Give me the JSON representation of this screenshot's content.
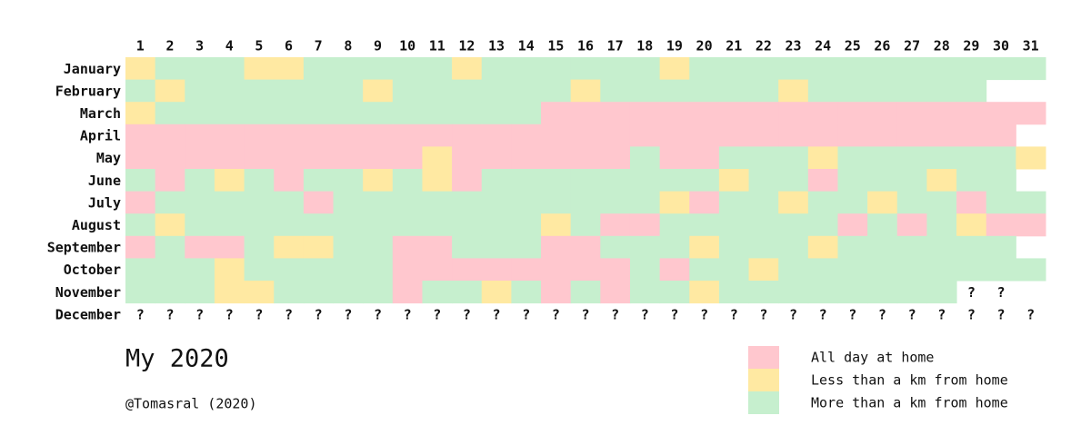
{
  "chart_data": {
    "type": "calendar-grid",
    "title": "My 2020",
    "credit": "@Tomasral (2020)",
    "days": [
      1,
      2,
      3,
      4,
      5,
      6,
      7,
      8,
      9,
      10,
      11,
      12,
      13,
      14,
      15,
      16,
      17,
      18,
      19,
      20,
      21,
      22,
      23,
      24,
      25,
      26,
      27,
      28,
      29,
      30,
      31
    ],
    "months": [
      "January",
      "February",
      "March",
      "April",
      "May",
      "June",
      "July",
      "August",
      "September",
      "October",
      "November",
      "December"
    ],
    "legend": [
      {
        "label": "All day at home",
        "color": "#ffc7ce"
      },
      {
        "label": "Less than a km from home",
        "color": "#ffe9a2"
      },
      {
        "label": "More than a km from home",
        "color": "#c6efce"
      }
    ],
    "cells": [
      [
        1,
        2,
        2,
        2,
        1,
        1,
        2,
        2,
        2,
        2,
        2,
        1,
        2,
        2,
        2,
        2,
        2,
        2,
        1,
        2,
        2,
        2,
        2,
        2,
        2,
        2,
        2,
        2,
        2,
        2,
        2
      ],
      [
        2,
        1,
        2,
        2,
        2,
        2,
        2,
        2,
        1,
        2,
        2,
        2,
        2,
        2,
        2,
        1,
        2,
        2,
        2,
        2,
        2,
        2,
        1,
        2,
        2,
        2,
        2,
        2,
        2,
        null,
        null
      ],
      [
        1,
        2,
        2,
        2,
        2,
        2,
        2,
        2,
        2,
        2,
        2,
        2,
        2,
        2,
        0,
        0,
        0,
        0,
        0,
        0,
        0,
        0,
        0,
        0,
        0,
        0,
        0,
        0,
        0,
        0,
        0
      ],
      [
        0,
        0,
        0,
        0,
        0,
        0,
        0,
        0,
        0,
        0,
        0,
        0,
        0,
        0,
        0,
        0,
        0,
        0,
        0,
        0,
        0,
        0,
        0,
        0,
        0,
        0,
        0,
        0,
        0,
        0,
        null
      ],
      [
        0,
        0,
        0,
        0,
        0,
        0,
        0,
        0,
        0,
        0,
        1,
        0,
        0,
        0,
        0,
        0,
        0,
        2,
        0,
        0,
        2,
        2,
        2,
        1,
        2,
        2,
        2,
        2,
        2,
        2,
        1
      ],
      [
        2,
        0,
        2,
        1,
        2,
        0,
        2,
        2,
        1,
        2,
        1,
        0,
        2,
        2,
        2,
        2,
        2,
        2,
        2,
        2,
        1,
        2,
        2,
        0,
        2,
        2,
        2,
        1,
        2,
        2,
        null
      ],
      [
        0,
        2,
        2,
        2,
        2,
        2,
        0,
        2,
        2,
        2,
        2,
        2,
        2,
        2,
        2,
        2,
        2,
        2,
        1,
        0,
        2,
        2,
        1,
        2,
        2,
        1,
        2,
        2,
        0,
        2,
        2
      ],
      [
        2,
        1,
        2,
        2,
        2,
        2,
        2,
        2,
        2,
        2,
        2,
        2,
        2,
        2,
        1,
        2,
        0,
        0,
        2,
        2,
        2,
        2,
        2,
        2,
        0,
        2,
        0,
        2,
        1,
        0,
        0
      ],
      [
        0,
        2,
        0,
        0,
        2,
        1,
        1,
        2,
        2,
        0,
        0,
        2,
        2,
        2,
        0,
        0,
        2,
        2,
        2,
        1,
        2,
        2,
        2,
        1,
        2,
        2,
        2,
        2,
        2,
        2,
        null
      ],
      [
        2,
        2,
        2,
        1,
        2,
        2,
        2,
        2,
        2,
        0,
        0,
        0,
        0,
        0,
        0,
        0,
        0,
        2,
        0,
        2,
        2,
        1,
        2,
        2,
        2,
        2,
        2,
        2,
        2,
        2,
        2
      ],
      [
        2,
        2,
        2,
        1,
        1,
        2,
        2,
        2,
        2,
        0,
        2,
        2,
        1,
        2,
        0,
        2,
        0,
        2,
        2,
        1,
        2,
        2,
        2,
        2,
        2,
        2,
        2,
        2,
        "?",
        "?",
        null
      ],
      [
        "?",
        "?",
        "?",
        "?",
        "?",
        "?",
        "?",
        "?",
        "?",
        "?",
        "?",
        "?",
        "?",
        "?",
        "?",
        "?",
        "?",
        "?",
        "?",
        "?",
        "?",
        "?",
        "?",
        "?",
        "?",
        "?",
        "?",
        "?",
        "?",
        "?",
        "?"
      ]
    ]
  }
}
